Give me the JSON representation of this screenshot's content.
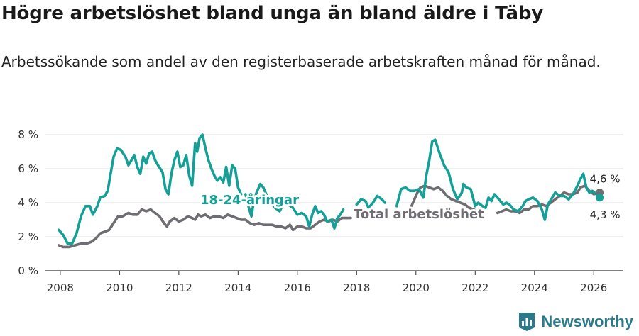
{
  "title": "Högre arbetslöshet bland unga än bland äldre i Täby",
  "subtitle": "Arbetssökande som andel av den registerbaserade arbetskraften månad för månad.",
  "brand": {
    "name": "Newsworthy",
    "icon": "newsworthy-logo-icon",
    "color": "#2b7a8c"
  },
  "chart_data": {
    "type": "line",
    "title": "Högre arbetslöshet bland unga än bland äldre i Täby",
    "xlabel": "",
    "ylabel": "",
    "xlim": [
      2007.5,
      2027.0
    ],
    "ylim": [
      0,
      8
    ],
    "x_ticks": [
      2008,
      2010,
      2012,
      2014,
      2016,
      2018,
      2020,
      2022,
      2024,
      2026
    ],
    "x_tick_labels": [
      "2008",
      "2010",
      "2012",
      "2014",
      "2016",
      "2018",
      "2020",
      "2022",
      "2024",
      "2026"
    ],
    "y_ticks": [
      0,
      2,
      4,
      6,
      8
    ],
    "y_tick_labels": [
      "0 %",
      "2 %",
      "4 %",
      "6 %",
      "8 %"
    ],
    "grid": true,
    "series": [
      {
        "name": "18-24-åringar",
        "label": "18-24-åringar",
        "color": "#14a096",
        "end_label": "4,3 %",
        "segments": [
          [
            [
              2007.95,
              2.4
            ],
            [
              2008.1,
              2.1
            ],
            [
              2008.25,
              1.6
            ],
            [
              2008.4,
              1.6
            ],
            [
              2008.55,
              2.2
            ],
            [
              2008.7,
              3.2
            ],
            [
              2008.85,
              3.8
            ],
            [
              2009.0,
              3.8
            ],
            [
              2009.1,
              3.3
            ],
            [
              2009.25,
              3.8
            ],
            [
              2009.35,
              4.3
            ],
            [
              2009.5,
              4.4
            ],
            [
              2009.6,
              4.7
            ],
            [
              2009.7,
              5.7
            ],
            [
              2009.8,
              6.7
            ],
            [
              2009.92,
              7.2
            ],
            [
              2010.05,
              7.1
            ],
            [
              2010.2,
              6.7
            ],
            [
              2010.3,
              6.2
            ],
            [
              2010.4,
              6.5
            ],
            [
              2010.5,
              6.8
            ],
            [
              2010.6,
              6.1
            ],
            [
              2010.7,
              5.7
            ],
            [
              2010.8,
              6.7
            ],
            [
              2010.9,
              6.3
            ],
            [
              2011.0,
              6.9
            ],
            [
              2011.1,
              7.0
            ],
            [
              2011.2,
              6.5
            ],
            [
              2011.3,
              6.2
            ],
            [
              2011.45,
              5.8
            ],
            [
              2011.55,
              4.8
            ],
            [
              2011.65,
              4.5
            ],
            [
              2011.75,
              5.7
            ],
            [
              2011.85,
              6.5
            ],
            [
              2011.95,
              7.0
            ],
            [
              2012.05,
              6.1
            ],
            [
              2012.15,
              6.2
            ],
            [
              2012.25,
              6.8
            ],
            [
              2012.35,
              5.6
            ],
            [
              2012.45,
              5.0
            ],
            [
              2012.55,
              7.5
            ],
            [
              2012.62,
              7.0
            ],
            [
              2012.7,
              7.8
            ],
            [
              2012.8,
              8.0
            ],
            [
              2012.9,
              7.2
            ],
            [
              2013.0,
              6.5
            ],
            [
              2013.1,
              6.0
            ],
            [
              2013.2,
              5.6
            ],
            [
              2013.3,
              5.3
            ],
            [
              2013.4,
              5.5
            ],
            [
              2013.5,
              5.2
            ],
            [
              2013.6,
              6.1
            ],
            [
              2013.7,
              5.0
            ],
            [
              2013.8,
              6.2
            ],
            [
              2013.9,
              6.0
            ],
            [
              2014.0,
              4.9
            ],
            [
              2014.1,
              4.5
            ]
          ],
          [
            [
              2014.25,
              4.5
            ],
            [
              2014.35,
              3.8
            ],
            [
              2014.45,
              3.2
            ],
            [
              2014.55,
              4.3
            ],
            [
              2014.65,
              4.7
            ],
            [
              2014.75,
              5.1
            ],
            [
              2014.85,
              4.9
            ],
            [
              2014.95,
              4.5
            ],
            [
              2015.1,
              4.0
            ],
            [
              2015.25,
              3.7
            ],
            [
              2015.4,
              3.5
            ],
            [
              2015.55,
              4.0
            ],
            [
              2015.7,
              3.9
            ],
            [
              2015.85,
              3.7
            ],
            [
              2016.0,
              3.3
            ],
            [
              2016.15,
              3.4
            ],
            [
              2016.3,
              3.2
            ],
            [
              2016.4,
              2.6
            ],
            [
              2016.5,
              3.3
            ],
            [
              2016.6,
              3.8
            ],
            [
              2016.7,
              3.4
            ],
            [
              2016.8,
              3.5
            ],
            [
              2016.9,
              3.3
            ],
            [
              2017.0,
              2.9
            ],
            [
              2017.15,
              3.0
            ],
            [
              2017.25,
              2.5
            ],
            [
              2017.35,
              3.1
            ],
            [
              2017.45,
              3.3
            ],
            [
              2017.55,
              3.6
            ]
          ],
          [
            [
              2018.0,
              3.9
            ],
            [
              2018.15,
              4.2
            ],
            [
              2018.3,
              4.1
            ],
            [
              2018.4,
              3.7
            ],
            [
              2018.55,
              4.0
            ],
            [
              2018.7,
              4.4
            ],
            [
              2018.85,
              4.2
            ],
            [
              2018.95,
              4.0
            ]
          ],
          [
            [
              2019.35,
              3.8
            ],
            [
              2019.5,
              4.8
            ],
            [
              2019.65,
              4.9
            ],
            [
              2019.8,
              4.7
            ],
            [
              2019.95,
              4.7
            ],
            [
              2020.1,
              4.8
            ],
            [
              2020.25,
              4.3
            ],
            [
              2020.35,
              5.6
            ],
            [
              2020.45,
              6.5
            ],
            [
              2020.55,
              7.6
            ],
            [
              2020.65,
              7.7
            ],
            [
              2020.8,
              6.9
            ],
            [
              2020.95,
              6.2
            ],
            [
              2021.1,
              5.8
            ],
            [
              2021.25,
              4.8
            ],
            [
              2021.4,
              4.2
            ],
            [
              2021.55,
              4.6
            ],
            [
              2021.6,
              5.1
            ],
            [
              2021.7,
              4.9
            ],
            [
              2021.85,
              4.8
            ],
            [
              2022.0,
              3.8
            ],
            [
              2022.1,
              4.0
            ],
            [
              2022.25,
              3.8
            ],
            [
              2022.35,
              3.7
            ],
            [
              2022.45,
              4.3
            ],
            [
              2022.55,
              4.1
            ],
            [
              2022.65,
              4.5
            ],
            [
              2022.8,
              4.2
            ],
            [
              2022.95,
              3.9
            ],
            [
              2023.05,
              4.0
            ],
            [
              2023.15,
              3.9
            ],
            [
              2023.3,
              3.6
            ],
            [
              2023.45,
              3.5
            ],
            [
              2023.6,
              3.8
            ],
            [
              2023.7,
              4.1
            ],
            [
              2023.8,
              4.2
            ],
            [
              2023.95,
              4.3
            ],
            [
              2024.1,
              4.1
            ],
            [
              2024.25,
              3.6
            ],
            [
              2024.35,
              3.0
            ],
            [
              2024.45,
              3.9
            ],
            [
              2024.6,
              4.3
            ],
            [
              2024.7,
              4.6
            ],
            [
              2024.85,
              4.4
            ],
            [
              2025.0,
              4.4
            ],
            [
              2025.15,
              4.2
            ],
            [
              2025.3,
              4.5
            ],
            [
              2025.45,
              5.0
            ],
            [
              2025.55,
              5.4
            ],
            [
              2025.65,
              5.7
            ],
            [
              2025.75,
              4.9
            ],
            [
              2025.85,
              4.6
            ],
            [
              2025.95,
              4.7
            ],
            [
              2026.1,
              4.5
            ],
            [
              2026.2,
              4.3
            ]
          ]
        ]
      },
      {
        "name": "Total arbetslöshet",
        "label": "Total arbetslöshet",
        "color": "#706d72",
        "end_label": "4,6 %",
        "segments": [
          [
            [
              2007.95,
              1.5
            ],
            [
              2008.1,
              1.4
            ],
            [
              2008.3,
              1.4
            ],
            [
              2008.5,
              1.5
            ],
            [
              2008.7,
              1.6
            ],
            [
              2008.9,
              1.6
            ],
            [
              2009.05,
              1.7
            ],
            [
              2009.2,
              1.9
            ],
            [
              2009.35,
              2.2
            ],
            [
              2009.5,
              2.3
            ],
            [
              2009.65,
              2.4
            ],
            [
              2009.8,
              2.8
            ],
            [
              2009.95,
              3.2
            ],
            [
              2010.1,
              3.2
            ],
            [
              2010.3,
              3.4
            ],
            [
              2010.45,
              3.3
            ],
            [
              2010.6,
              3.3
            ],
            [
              2010.75,
              3.6
            ],
            [
              2010.9,
              3.5
            ],
            [
              2011.05,
              3.6
            ],
            [
              2011.2,
              3.4
            ],
            [
              2011.35,
              3.2
            ],
            [
              2011.5,
              2.8
            ],
            [
              2011.6,
              2.6
            ],
            [
              2011.7,
              2.9
            ],
            [
              2011.85,
              3.1
            ],
            [
              2012.0,
              2.9
            ],
            [
              2012.15,
              3.0
            ],
            [
              2012.3,
              3.2
            ],
            [
              2012.45,
              3.1
            ],
            [
              2012.55,
              3.0
            ],
            [
              2012.65,
              3.3
            ],
            [
              2012.75,
              3.2
            ],
            [
              2012.9,
              3.3
            ],
            [
              2013.05,
              3.1
            ],
            [
              2013.2,
              3.2
            ],
            [
              2013.35,
              3.2
            ],
            [
              2013.5,
              3.1
            ],
            [
              2013.65,
              3.3
            ],
            [
              2013.8,
              3.2
            ],
            [
              2013.95,
              3.1
            ],
            [
              2014.1,
              3.0
            ],
            [
              2014.25,
              3.0
            ],
            [
              2014.4,
              2.8
            ],
            [
              2014.55,
              2.7
            ],
            [
              2014.7,
              2.8
            ],
            [
              2014.85,
              2.7
            ],
            [
              2015.0,
              2.7
            ],
            [
              2015.15,
              2.7
            ],
            [
              2015.3,
              2.6
            ],
            [
              2015.45,
              2.6
            ],
            [
              2015.6,
              2.5
            ],
            [
              2015.75,
              2.7
            ],
            [
              2015.85,
              2.4
            ],
            [
              2016.0,
              2.6
            ],
            [
              2016.15,
              2.6
            ],
            [
              2016.3,
              2.5
            ],
            [
              2016.45,
              2.5
            ],
            [
              2016.6,
              2.7
            ],
            [
              2016.75,
              2.9
            ],
            [
              2016.9,
              3.0
            ],
            [
              2017.05,
              2.9
            ],
            [
              2017.2,
              3.0
            ],
            [
              2017.35,
              2.9
            ],
            [
              2017.5,
              3.1
            ],
            [
              2017.65,
              3.1
            ],
            [
              2017.8,
              3.1
            ]
          ],
          [
            [
              2019.85,
              3.8
            ],
            [
              2019.95,
              4.2
            ],
            [
              2020.05,
              4.6
            ],
            [
              2020.15,
              4.9
            ],
            [
              2020.3,
              5.0
            ],
            [
              2020.45,
              4.9
            ],
            [
              2020.6,
              4.8
            ],
            [
              2020.75,
              4.9
            ],
            [
              2020.9,
              4.7
            ],
            [
              2021.05,
              4.4
            ],
            [
              2021.2,
              4.2
            ],
            [
              2021.35,
              4.1
            ],
            [
              2021.5,
              4.0
            ],
            [
              2021.65,
              3.9
            ],
            [
              2021.8,
              3.7
            ],
            [
              2021.95,
              3.6
            ],
            [
              2022.05,
              3.5
            ]
          ],
          [
            [
              2022.75,
              3.4
            ],
            [
              2022.9,
              3.5
            ],
            [
              2023.05,
              3.6
            ],
            [
              2023.2,
              3.5
            ],
            [
              2023.35,
              3.5
            ],
            [
              2023.5,
              3.4
            ],
            [
              2023.65,
              3.6
            ],
            [
              2023.8,
              3.6
            ],
            [
              2023.95,
              3.8
            ],
            [
              2024.1,
              3.8
            ],
            [
              2024.25,
              3.9
            ],
            [
              2024.4,
              3.8
            ],
            [
              2024.55,
              4.0
            ],
            [
              2024.7,
              4.2
            ],
            [
              2024.85,
              4.4
            ],
            [
              2025.0,
              4.6
            ],
            [
              2025.15,
              4.5
            ],
            [
              2025.3,
              4.5
            ],
            [
              2025.45,
              4.6
            ],
            [
              2025.55,
              4.9
            ],
            [
              2025.7,
              5.0
            ],
            [
              2025.85,
              4.7
            ],
            [
              2026.0,
              4.5
            ],
            [
              2026.2,
              4.6
            ]
          ]
        ]
      }
    ]
  }
}
